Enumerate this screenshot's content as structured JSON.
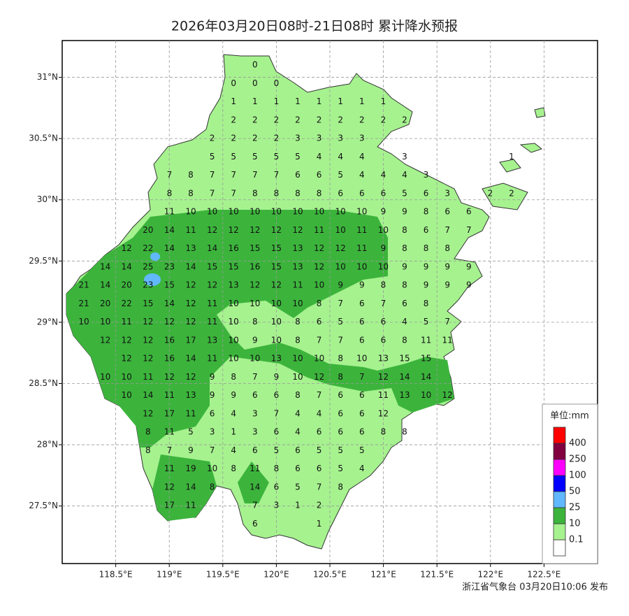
{
  "title": "2026年03月20日08时-21日08时 累计降水预报",
  "footer": "浙江省气象台 03月20日10:06 发布",
  "map": {
    "xlim": [
      118.0,
      123.0
    ],
    "ylim": [
      27.03,
      31.3
    ],
    "xticks": [
      {
        "value": 118.5,
        "label": "118.5°E"
      },
      {
        "value": 119,
        "label": "119°E"
      },
      {
        "value": 119.5,
        "label": "119.5°E"
      },
      {
        "value": 120,
        "label": "120°E"
      },
      {
        "value": 120.5,
        "label": "120.5°E"
      },
      {
        "value": 121,
        "label": "121°E"
      },
      {
        "value": 121.5,
        "label": "121.5°E"
      },
      {
        "value": 122,
        "label": "122°E"
      },
      {
        "value": 122.5,
        "label": "122.5°E"
      }
    ],
    "yticks": [
      {
        "value": 27.5,
        "label": "27.5°N"
      },
      {
        "value": 28,
        "label": "28°N"
      },
      {
        "value": 28.5,
        "label": "28.5°N"
      },
      {
        "value": 29,
        "label": "29°N"
      },
      {
        "value": 29.5,
        "label": "29.5°N"
      },
      {
        "value": 30,
        "label": "30°N"
      },
      {
        "value": 30.5,
        "label": "30.5°N"
      },
      {
        "value": 31,
        "label": "31°N"
      }
    ],
    "grid": true,
    "grid_values": [
      [
        null,
        null,
        null,
        null,
        null,
        null,
        null,
        null,
        0,
        null,
        null,
        null,
        null,
        null,
        null,
        null,
        null,
        null,
        null,
        null,
        null
      ],
      [
        null,
        null,
        null,
        null,
        null,
        null,
        null,
        0,
        0,
        0,
        null,
        null,
        null,
        null,
        null,
        null,
        null,
        null,
        null,
        null,
        null
      ],
      [
        null,
        null,
        null,
        null,
        null,
        null,
        null,
        1,
        1,
        1,
        1,
        1,
        1,
        1,
        1,
        null,
        null,
        null,
        null,
        null,
        null
      ],
      [
        null,
        null,
        null,
        null,
        null,
        null,
        null,
        2,
        2,
        2,
        2,
        2,
        2,
        2,
        2,
        2,
        null,
        null,
        null,
        null,
        null
      ],
      [
        null,
        null,
        null,
        null,
        null,
        null,
        2,
        2,
        2,
        2,
        3,
        3,
        3,
        3,
        null,
        null,
        null,
        null,
        null,
        null,
        null
      ],
      [
        null,
        null,
        null,
        null,
        null,
        null,
        5,
        5,
        5,
        5,
        5,
        4,
        4,
        4,
        null,
        3,
        null,
        null,
        null,
        null,
        1
      ],
      [
        null,
        null,
        null,
        null,
        7,
        8,
        7,
        7,
        7,
        7,
        6,
        6,
        5,
        4,
        4,
        4,
        3,
        null,
        null,
        null,
        null
      ],
      [
        null,
        null,
        null,
        null,
        8,
        8,
        7,
        7,
        8,
        8,
        8,
        8,
        6,
        6,
        6,
        5,
        6,
        3,
        null,
        2,
        2
      ],
      [
        null,
        null,
        null,
        null,
        11,
        10,
        10,
        10,
        10,
        10,
        10,
        10,
        10,
        10,
        9,
        9,
        8,
        6,
        6,
        null,
        null
      ],
      [
        null,
        null,
        null,
        20,
        14,
        11,
        12,
        12,
        12,
        12,
        12,
        11,
        10,
        11,
        10,
        8,
        6,
        7,
        7,
        null,
        null
      ],
      [
        null,
        null,
        12,
        22,
        14,
        13,
        14,
        16,
        15,
        15,
        13,
        12,
        12,
        11,
        9,
        8,
        8,
        8,
        null,
        null,
        null
      ],
      [
        null,
        14,
        14,
        25,
        23,
        14,
        15,
        15,
        16,
        15,
        13,
        12,
        10,
        10,
        10,
        9,
        9,
        9,
        9,
        null,
        null
      ],
      [
        21,
        14,
        20,
        23,
        15,
        12,
        12,
        13,
        12,
        12,
        11,
        10,
        9,
        9,
        8,
        8,
        9,
        9,
        9,
        null,
        null
      ],
      [
        21,
        20,
        22,
        15,
        14,
        12,
        11,
        10,
        10,
        10,
        10,
        8,
        7,
        6,
        7,
        6,
        8,
        null,
        null,
        null,
        null
      ],
      [
        10,
        10,
        11,
        12,
        12,
        12,
        11,
        10,
        8,
        10,
        8,
        6,
        5,
        6,
        6,
        4,
        5,
        7,
        null,
        null,
        null
      ],
      [
        null,
        12,
        12,
        12,
        16,
        17,
        13,
        10,
        9,
        10,
        8,
        7,
        7,
        6,
        6,
        8,
        11,
        11,
        null,
        null,
        null
      ],
      [
        null,
        null,
        12,
        12,
        16,
        14,
        11,
        10,
        10,
        13,
        10,
        10,
        8,
        10,
        13,
        15,
        15,
        null,
        null,
        null,
        null
      ],
      [
        null,
        10,
        10,
        11,
        12,
        12,
        9,
        8,
        7,
        9,
        10,
        12,
        8,
        7,
        12,
        14,
        14,
        null,
        null,
        null,
        null
      ],
      [
        null,
        null,
        10,
        14,
        11,
        13,
        9,
        9,
        6,
        6,
        8,
        7,
        6,
        6,
        11,
        13,
        10,
        12,
        null,
        null,
        null
      ],
      [
        null,
        null,
        null,
        12,
        17,
        11,
        6,
        4,
        3,
        7,
        4,
        4,
        6,
        6,
        12,
        null,
        null,
        null,
        null,
        null,
        null
      ],
      [
        null,
        null,
        null,
        8,
        11,
        5,
        3,
        1,
        3,
        6,
        4,
        6,
        6,
        6,
        8,
        8,
        null,
        null,
        null,
        null,
        null
      ],
      [
        null,
        null,
        null,
        8,
        7,
        9,
        7,
        4,
        6,
        5,
        6,
        5,
        5,
        5,
        null,
        null,
        null,
        null,
        null,
        null,
        null
      ],
      [
        null,
        null,
        null,
        null,
        11,
        19,
        10,
        8,
        11,
        8,
        6,
        6,
        5,
        4,
        null,
        null,
        null,
        null,
        null,
        null,
        null
      ],
      [
        null,
        null,
        null,
        null,
        12,
        14,
        8,
        null,
        14,
        6,
        5,
        7,
        8,
        null,
        null,
        null,
        null,
        null,
        null,
        null,
        null
      ],
      [
        null,
        null,
        null,
        null,
        17,
        11,
        null,
        null,
        7,
        3,
        1,
        2,
        null,
        null,
        null,
        null,
        null,
        null,
        null,
        null,
        null
      ],
      [
        null,
        null,
        null,
        null,
        null,
        null,
        null,
        null,
        6,
        null,
        null,
        1,
        null,
        null,
        null,
        null,
        null,
        null,
        null,
        null,
        null
      ]
    ]
  },
  "legend": {
    "title": "单位:mm",
    "levels": [
      0.1,
      10,
      25,
      50,
      100,
      250,
      400
    ],
    "colors": [
      "#ffffff",
      "#a6f28f",
      "#3cb43c",
      "#61b8ff",
      "#0000fe",
      "#fe00fe",
      "#810040",
      "#fe0000"
    ]
  }
}
